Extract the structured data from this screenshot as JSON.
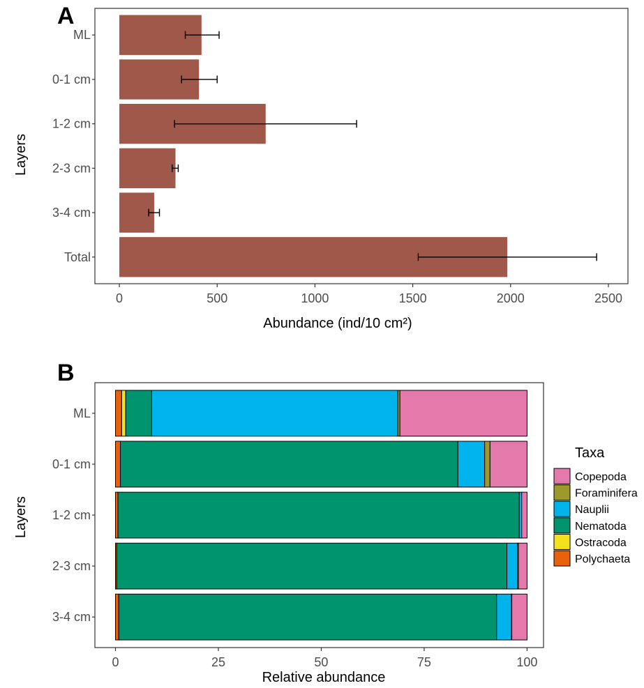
{
  "chart_data": [
    {
      "panel": "A",
      "type": "bar",
      "orientation": "horizontal",
      "ylabel": "Layers",
      "xlabel": "Abundance (ind/10 cm²)",
      "categories": [
        "ML",
        "0-1 cm",
        "1-2 cm",
        "2-3 cm",
        "3-4 cm",
        "Total"
      ],
      "values": [
        420,
        407,
        748,
        287,
        178,
        1983
      ],
      "error_low": [
        337,
        318,
        282,
        270,
        150,
        1528
      ],
      "error_high": [
        510,
        500,
        1213,
        301,
        205,
        2440
      ],
      "xlim": [
        -125,
        2600
      ],
      "xticks": [
        0,
        500,
        1000,
        1500,
        2000,
        2500
      ],
      "xtick_labels": [
        "0",
        "500",
        "1000",
        "1500",
        "2000",
        "2500"
      ],
      "bar_color": "#a0584a",
      "grid": false
    },
    {
      "panel": "B",
      "type": "bar",
      "orientation": "horizontal",
      "stacked": true,
      "ylabel": "Layers",
      "xlabel": "Relative abundance",
      "categories": [
        "ML",
        "0-1 cm",
        "1-2 cm",
        "2-3 cm",
        "3-4 cm"
      ],
      "xlim": [
        -5,
        104
      ],
      "xticks": [
        0,
        25,
        50,
        75,
        100
      ],
      "xtick_labels": [
        "0",
        "25",
        "50",
        "75",
        "100"
      ],
      "stack_order": [
        "Polychaeta",
        "Ostracoda",
        "Nematoda",
        "Nauplii",
        "Foraminifera",
        "Copepoda"
      ],
      "series": [
        {
          "name": "Copepoda",
          "color": "#e47aac",
          "values": [
            30.9,
            9.0,
            1.3,
            2.1,
            3.7
          ]
        },
        {
          "name": "Foraminifera",
          "color": "#9b9a2a",
          "values": [
            0.5,
            1.3,
            0.0,
            0.2,
            0.1
          ]
        },
        {
          "name": "Nauplii",
          "color": "#00b4eb",
          "values": [
            59.8,
            6.5,
            0.6,
            2.6,
            3.6
          ]
        },
        {
          "name": "Nematoda",
          "color": "#00946e",
          "values": [
            6.3,
            82.0,
            97.5,
            94.8,
            91.8
          ]
        },
        {
          "name": "Ostracoda",
          "color": "#f2e11c",
          "values": [
            1.0,
            0.0,
            0.0,
            0.0,
            0.0
          ]
        },
        {
          "name": "Polychaeta",
          "color": "#e8620c",
          "values": [
            1.5,
            1.2,
            0.6,
            0.3,
            0.8
          ]
        }
      ],
      "legend": {
        "title": "Taxa",
        "position": "right",
        "entries": [
          "Copepoda",
          "Foraminifera",
          "Nauplii",
          "Nematoda",
          "Ostracoda",
          "Polychaeta"
        ]
      },
      "grid": false
    }
  ]
}
